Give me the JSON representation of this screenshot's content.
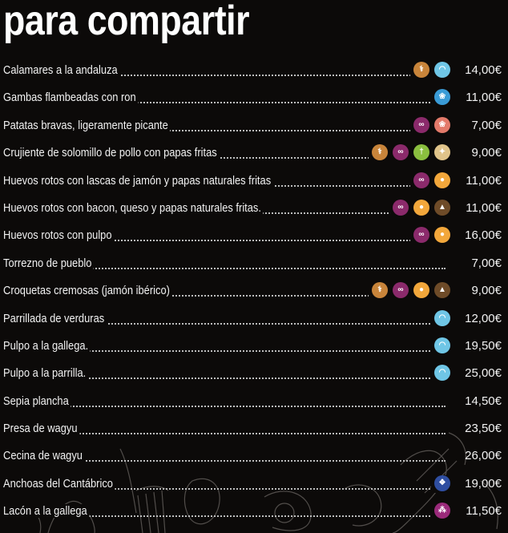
{
  "title": "para compartir",
  "colors": {
    "gluten": "#c8843a",
    "lactose": "#8b2a6b",
    "crustacean": "#6fc6e6",
    "egg": "#f2a73b",
    "mustard": "#8bbf3f",
    "sesame": "#e0c48a",
    "nuts": "#e37a6a",
    "sulphite": "#6e4b28",
    "fish": "#2f4ea1",
    "mollusc": "#3a9bd6",
    "soy": "#9a2a7a"
  },
  "items": [
    {
      "name": "Calamares a la andaluza",
      "price": "14,00€",
      "icons": [
        "gluten",
        "crustacean"
      ]
    },
    {
      "name": "Gambas flambeadas con ron",
      "price": "11,00€",
      "icons": [
        "mollusc"
      ]
    },
    {
      "name": "Patatas bravas, ligeramente picante",
      "price": "7,00€",
      "icons": [
        "lactose",
        "nuts"
      ]
    },
    {
      "name": "Crujiente de solomillo de pollo con papas fritas",
      "price": "9,00€",
      "icons": [
        "gluten",
        "lactose",
        "mustard",
        "sesame"
      ]
    },
    {
      "name": "Huevos rotos con lascas de jamón y papas naturales fritas",
      "price": "11,00€",
      "icons": [
        "lactose",
        "egg"
      ]
    },
    {
      "name": "Huevos rotos con bacon, queso y papas naturales fritas.",
      "price": "11,00€",
      "icons": [
        "lactose",
        "egg",
        "sulphite"
      ]
    },
    {
      "name": "Huevos rotos con pulpo",
      "price": "16,00€",
      "icons": [
        "lactose",
        "egg"
      ]
    },
    {
      "name": "Torrezno de pueblo",
      "price": "7,00€",
      "icons": []
    },
    {
      "name": "Croquetas cremosas (jamón ibérico)",
      "price": "9,00€",
      "icons": [
        "gluten",
        "lactose",
        "egg",
        "sulphite"
      ]
    },
    {
      "name": "Parrillada de verduras",
      "price": "12,00€",
      "icons": [
        "crustacean"
      ]
    },
    {
      "name": "Pulpo a la gallega.",
      "price": "19,50€",
      "icons": [
        "crustacean"
      ]
    },
    {
      "name": "Pulpo a la parrilla.",
      "price": "25,00€",
      "icons": [
        "crustacean"
      ]
    },
    {
      "name": "Sepia plancha",
      "price": "14,50€",
      "icons": []
    },
    {
      "name": "Presa de wagyu",
      "price": "23,50€",
      "icons": []
    },
    {
      "name": "Cecina de wagyu",
      "price": "26,00€",
      "icons": []
    },
    {
      "name": "Anchoas del Cantábrico",
      "price": "19,00€",
      "icons": [
        "fish"
      ]
    },
    {
      "name": "Lacón a la gallega",
      "price": "11,50€",
      "icons": [
        "soy"
      ]
    }
  ]
}
